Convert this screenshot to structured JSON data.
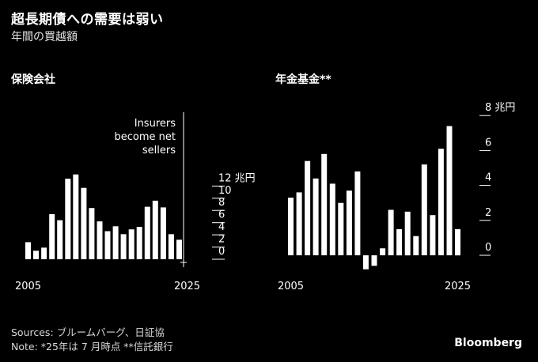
{
  "header": {
    "title": "超長期債への需要は弱い",
    "subtitle": "年間の買越額"
  },
  "chart_data": [
    {
      "type": "bar",
      "title": "保険会社",
      "unit": "兆円",
      "x": [
        2005,
        2006,
        2007,
        2008,
        2009,
        2010,
        2011,
        2012,
        2013,
        2014,
        2015,
        2016,
        2017,
        2018,
        2019,
        2020,
        2021,
        2022,
        2023,
        2024,
        2025
      ],
      "values": [
        2.8,
        1.4,
        1.9,
        7.4,
        6.4,
        13.2,
        13.9,
        11.7,
        8.4,
        6.2,
        4.6,
        5.4,
        4.1,
        4.9,
        5.3,
        8.6,
        9.6,
        8.5,
        4.1,
        3.2,
        0.0
      ],
      "tick_year_labels": [
        "2005",
        "2025"
      ],
      "ylim": [
        -1,
        13
      ],
      "yticks": [
        0,
        2,
        4,
        6,
        8,
        10,
        12
      ],
      "ytick_labels": [
        "0",
        "2",
        "4",
        "6",
        "8",
        "10",
        "12 兆円"
      ],
      "annotation": [
        "Insurers",
        "become net",
        "sellers"
      ]
    },
    {
      "type": "bar",
      "title": "年金基金**",
      "unit": "兆円",
      "x": [
        2005,
        2006,
        2007,
        2008,
        2009,
        2010,
        2011,
        2012,
        2013,
        2014,
        2015,
        2016,
        2017,
        2018,
        2019,
        2020,
        2021,
        2022,
        2023,
        2024,
        2025
      ],
      "values": [
        3.3,
        3.6,
        5.4,
        4.4,
        5.8,
        4.1,
        3.0,
        3.7,
        4.8,
        -0.8,
        -0.6,
        0.4,
        2.6,
        1.5,
        2.5,
        1.1,
        5.2,
        2.3,
        6.1,
        7.4,
        1.5
      ],
      "tick_year_labels": [
        "2005",
        "2025"
      ],
      "ylim": [
        -1,
        8
      ],
      "yticks": [
        0,
        2,
        4,
        6,
        8
      ],
      "ytick_labels": [
        "0",
        "2",
        "4",
        "6",
        "8 兆円"
      ]
    }
  ],
  "footer": {
    "sources": "Sources: ブルームバーグ、日証協",
    "note": "Note: *25年は 7 月時点 **信託銀行"
  },
  "brand": "Bloomberg"
}
